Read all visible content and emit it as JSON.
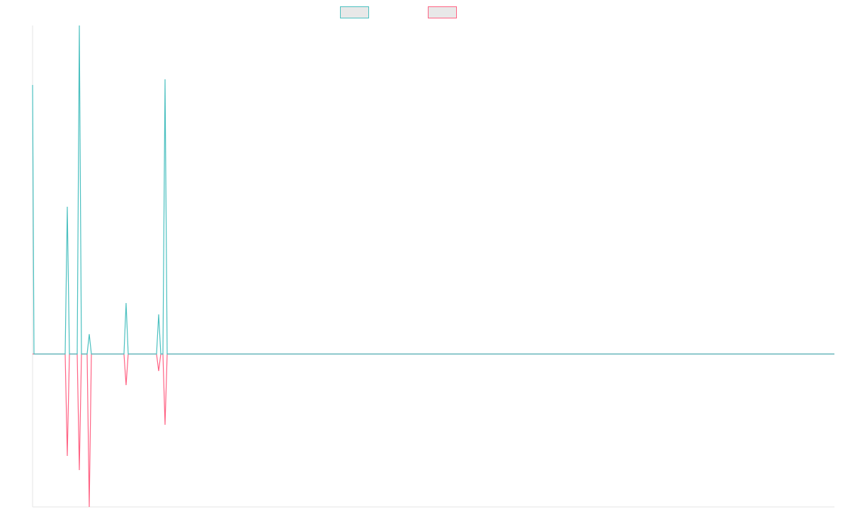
{
  "chart_data": {
    "type": "line",
    "xlim": [
      0,
      1132
    ],
    "ylim": [
      -54,
      116
    ],
    "legend": "top",
    "series": [
      {
        "color": "#4bc0c0",
        "x": [
          0,
          2,
          46,
          49,
          52,
          63,
          66,
          69,
          77,
          80,
          83,
          129,
          132,
          135,
          175,
          178,
          181,
          184,
          187,
          190,
          1132
        ],
        "values": [
          95,
          0,
          0,
          52,
          0,
          0,
          116,
          0,
          0,
          7,
          0,
          0,
          18,
          0,
          0,
          14,
          0,
          0,
          97,
          0,
          0
        ]
      },
      {
        "color": "#ff6384",
        "x": [
          0,
          46,
          49,
          52,
          63,
          66,
          69,
          77,
          80,
          83,
          129,
          132,
          135,
          175,
          178,
          181,
          184,
          187,
          190,
          1132
        ],
        "values": [
          0,
          0,
          -36,
          0,
          0,
          -41,
          0,
          0,
          -54,
          0,
          0,
          -11,
          0,
          0,
          -6,
          0,
          0,
          -25,
          0,
          0
        ]
      }
    ]
  }
}
